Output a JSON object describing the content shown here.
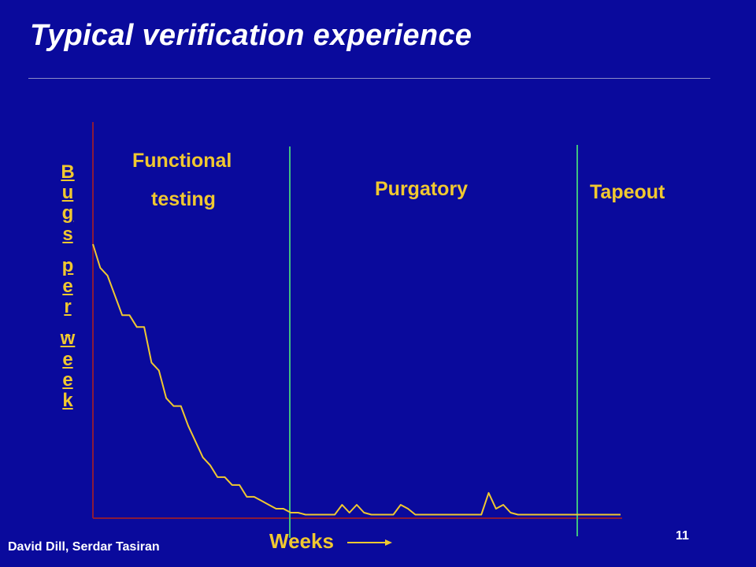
{
  "slide": {
    "title": "Typical verification experience",
    "author": "David Dill,  Serdar Tasiran",
    "page_number": "11"
  },
  "axes": {
    "y_label": "Bugs per week",
    "x_label": "Weeks"
  },
  "phases": {
    "functional_line1": "Functional",
    "functional_line2": "testing",
    "purgatory": "Purgatory",
    "tapeout": "Tapeout"
  },
  "colors": {
    "background": "#0a0a9c",
    "text_accent": "#f0c830",
    "axis": "#8b1a3a",
    "divider": "#3fbf7f",
    "curve": "#f0c830"
  },
  "chart_data": {
    "type": "line",
    "grid": false,
    "note_values_are_relative": "bugs per week, arbitrary units",
    "phase_boundaries_week": [
      14,
      33
    ],
    "x": [
      0,
      0.5,
      1,
      1.5,
      2,
      2.5,
      3,
      3.5,
      4,
      4.5,
      5,
      5.5,
      6,
      6.5,
      7,
      7.5,
      8,
      8.5,
      9,
      9.5,
      10,
      10.5,
      11,
      11.5,
      12,
      12.5,
      13,
      13.5,
      14,
      14.5,
      15,
      15.5,
      16,
      16.5,
      17,
      17.5,
      18,
      18.5,
      19,
      19.5,
      20,
      20.5,
      21,
      21.5,
      22,
      22.5,
      23,
      23.5,
      24,
      24.5,
      25,
      25.5,
      26,
      26.5,
      27,
      27.5,
      28,
      28.5,
      29,
      29.5,
      30,
      30.5,
      31,
      31.5,
      32,
      32.5,
      33,
      33.5,
      34,
      34.5,
      35,
      35.5,
      36
    ],
    "y": [
      69,
      63,
      61,
      56,
      51,
      51,
      48,
      48,
      39,
      37,
      30,
      28,
      28,
      23,
      19,
      15,
      13,
      10,
      10,
      8,
      8,
      5,
      5,
      4,
      3,
      2,
      2,
      1,
      1,
      0.5,
      0.5,
      0.5,
      0.5,
      0.5,
      3,
      1,
      3,
      1,
      0.5,
      0.5,
      0.5,
      0.5,
      3,
      2,
      0.5,
      0.5,
      0.5,
      0.5,
      0.5,
      0.5,
      0.5,
      0.5,
      0.5,
      0.5,
      6,
      2,
      3,
      1,
      0.5,
      0.5,
      0.5,
      0.5,
      0.5,
      0.5,
      0.5,
      0.5,
      0.5,
      0.5,
      0.5,
      0.5,
      0.5,
      0.5,
      0.5
    ]
  }
}
